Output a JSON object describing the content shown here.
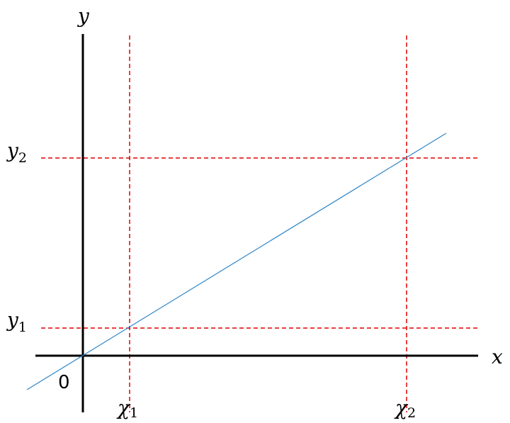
{
  "axis_y": "y",
  "axis_x": "x",
  "origin": "0",
  "guides": [
    {
      "base": "y",
      "sub": "2"
    },
    {
      "base": "y",
      "sub": "1"
    },
    {
      "base": "χ",
      "sub": "1"
    },
    {
      "base": "χ",
      "sub": "2"
    }
  ]
}
